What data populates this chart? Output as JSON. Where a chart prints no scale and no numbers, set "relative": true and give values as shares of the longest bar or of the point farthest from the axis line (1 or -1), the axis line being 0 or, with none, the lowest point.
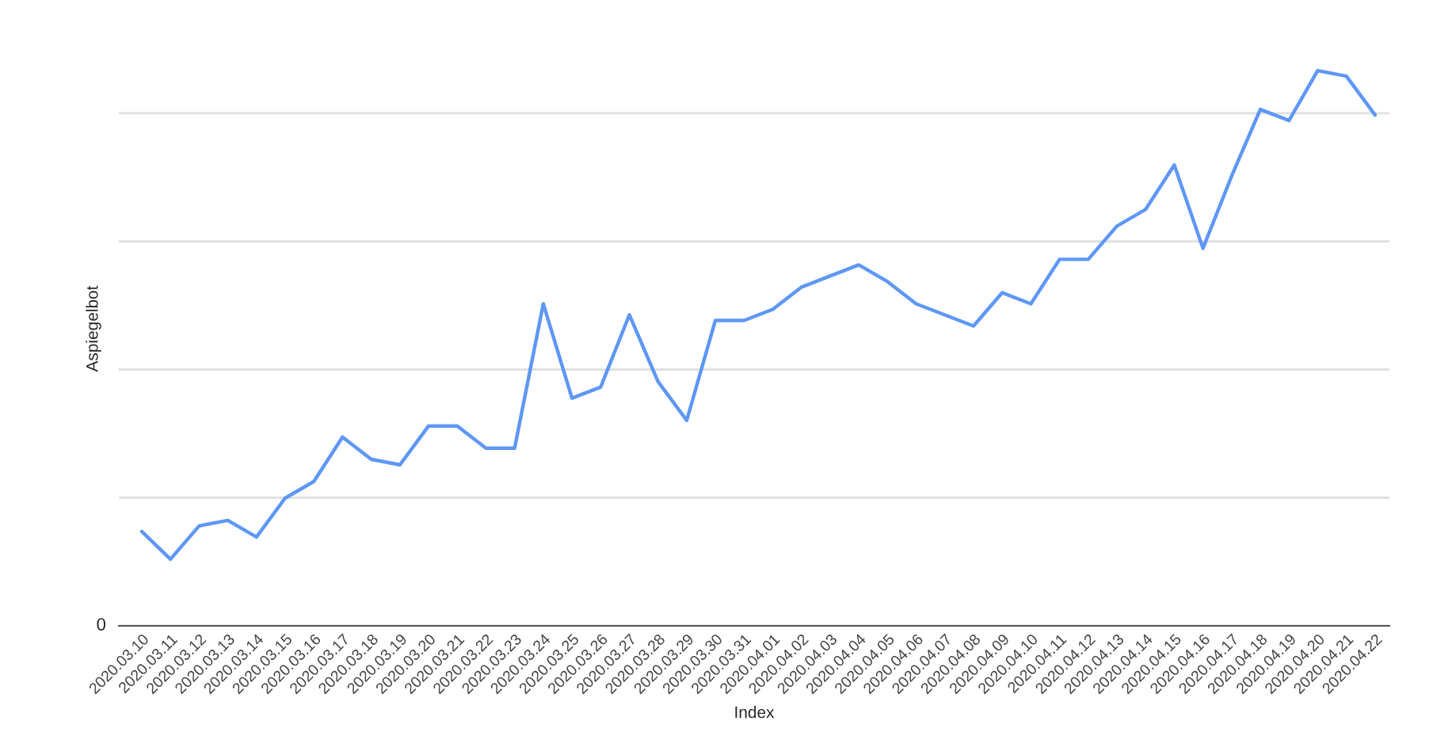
{
  "chart_data": {
    "type": "line",
    "xlabel": "Index",
    "ylabel": "Aspiegelbot",
    "relative": true,
    "categories": [
      "2020.03.10",
      "2020.03.11",
      "2020.03.12",
      "2020.03.13",
      "2020.03.14",
      "2020.03.15",
      "2020.03.16",
      "2020.03.17",
      "2020.03.18",
      "2020.03.19",
      "2020.03.20",
      "2020.03.21",
      "2020.03.22",
      "2020.03.23",
      "2020.03.24",
      "2020.03.25",
      "2020.03.26",
      "2020.03.27",
      "2020.03.28",
      "2020.03.29",
      "2020.03.30",
      "2020.03.31",
      "2020.04.01",
      "2020.04.02",
      "2020.04.03",
      "2020.04.04",
      "2020.04.05",
      "2020.04.06",
      "2020.04.07",
      "2020.04.08",
      "2020.04.09",
      "2020.04.10",
      "2020.04.11",
      "2020.04.12",
      "2020.04.13",
      "2020.04.14",
      "2020.04.15",
      "2020.04.16",
      "2020.04.17",
      "2020.04.18",
      "2020.04.19",
      "2020.04.20",
      "2020.04.21",
      "2020.04.22"
    ],
    "series": [
      {
        "color": "#5e97f6",
        "values": [
          0.17,
          0.12,
          0.18,
          0.19,
          0.16,
          0.23,
          0.26,
          0.34,
          0.3,
          0.29,
          0.36,
          0.36,
          0.32,
          0.32,
          0.58,
          0.41,
          0.43,
          0.56,
          0.44,
          0.37,
          0.55,
          0.55,
          0.57,
          0.61,
          0.63,
          0.65,
          0.62,
          0.58,
          0.56,
          0.54,
          0.6,
          0.58,
          0.66,
          0.66,
          0.72,
          0.75,
          0.83,
          0.68,
          0.81,
          0.93,
          0.91,
          1,
          0.99,
          0.92
        ]
      }
    ],
    "annotations": [
      "0"
    ],
    "grid": "y",
    "legend": false,
    "marker": "none",
    "line_style": "solid"
  }
}
